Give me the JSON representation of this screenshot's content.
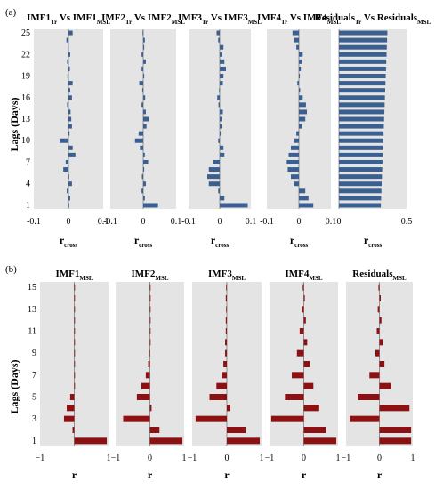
{
  "figure": {
    "panel_a_label": "(a)",
    "panel_b_label": "(b)"
  },
  "colors": {
    "bar_a": "#3B5F91",
    "bar_b": "#8B1113",
    "panel_bg": "#E4E4E4"
  },
  "chart_data": [
    {
      "type": "bar",
      "orientation": "horizontal",
      "panel": "(a)",
      "ylabel": "Lags (Days)",
      "y_ticks": [
        1,
        4,
        7,
        10,
        13,
        16,
        19,
        22,
        25
      ],
      "lags": [
        1,
        2,
        3,
        4,
        5,
        6,
        7,
        8,
        9,
        10,
        11,
        12,
        13,
        14,
        15,
        16,
        17,
        18,
        19,
        20,
        21,
        22,
        23,
        24,
        25
      ],
      "grid": "off",
      "subplots": [
        {
          "title_main": "IMF1",
          "title_sub": "Tr",
          "title_mid": " Vs IMF1",
          "title_sub2": "MSL",
          "xlabel_main": "r",
          "xlabel_sub": "cross",
          "xlim": [
            -0.1,
            0.1
          ],
          "x_ticks": [
            "-0.1",
            "0",
            "0.1"
          ],
          "x_tick_values": [
            -0.1,
            0,
            0.1
          ],
          "values": [
            0.0,
            0.005,
            -0.005,
            0.01,
            0.0,
            -0.015,
            -0.008,
            0.02,
            0.012,
            -0.025,
            0.003,
            0.01,
            0.008,
            0.006,
            -0.004,
            0.01,
            0.005,
            0.012,
            -0.003,
            0.004,
            -0.004,
            0.005,
            -0.002,
            -0.006,
            0.012
          ]
        },
        {
          "title_main": "IMF2",
          "title_sub": "Tr",
          "title_mid": " Vs IMF2",
          "title_sub2": "MSL",
          "xlabel_main": "r",
          "xlabel_sub": "cross",
          "xlim": [
            -0.1,
            0.1
          ],
          "x_ticks": [
            "-0.1",
            "0",
            "0.1"
          ],
          "x_tick_values": [
            -0.1,
            0,
            0.1
          ],
          "values": [
            0.045,
            0.005,
            -0.005,
            0.008,
            -0.004,
            0.003,
            0.015,
            0.005,
            -0.01,
            -0.025,
            -0.014,
            0.01,
            0.018,
            0.008,
            -0.005,
            0.006,
            -0.003,
            -0.012,
            0.003,
            -0.005,
            0.008,
            -0.005,
            0.003,
            0.005,
            -0.002
          ]
        },
        {
          "title_main": "IMF3",
          "title_sub": "Tr",
          "title_mid": " Vs IMF3",
          "title_sub2": "MSL",
          "xlabel_main": "r",
          "xlabel_sub": "cross",
          "xlim": [
            -0.1,
            0.1
          ],
          "x_ticks": [
            "-0.1",
            "0",
            "0.1"
          ],
          "x_tick_values": [
            -0.1,
            0,
            0.1
          ],
          "values": [
            0.09,
            0.015,
            -0.005,
            -0.035,
            -0.04,
            -0.035,
            -0.02,
            0.015,
            0.012,
            -0.005,
            0.003,
            0.006,
            0.008,
            0.01,
            -0.004,
            -0.008,
            -0.002,
            0.01,
            0.012,
            0.02,
            0.015,
            0.006,
            0.012,
            -0.005,
            -0.01
          ]
        },
        {
          "title_main": "IMF4",
          "title_sub": "Tr",
          "title_mid": " Vs IMF4",
          "title_sub2": "MSL",
          "xlabel_main": "r",
          "xlabel_sub": "cross",
          "xlim": [
            -0.1,
            0.1
          ],
          "x_ticks": [
            "-0.1",
            "0",
            "0.1"
          ],
          "x_tick_values": [
            -0.1,
            0,
            0.1
          ],
          "values": [
            0.045,
            0.03,
            0.02,
            -0.015,
            -0.025,
            -0.035,
            -0.038,
            -0.032,
            -0.025,
            -0.015,
            -0.008,
            0.01,
            0.02,
            0.025,
            0.022,
            0.012,
            0.004,
            -0.005,
            0.003,
            0.006,
            0.01,
            0.012,
            -0.008,
            -0.015,
            -0.02
          ]
        },
        {
          "title_main": "Residuals",
          "title_sub": "Tr",
          "title_mid": " Vs  Residuals",
          "title_sub2": "MSL",
          "xlabel_main": "r",
          "xlabel_sub": "cross",
          "xlim": [
            0,
            0.5
          ],
          "x_ticks": [
            "0",
            "0.5"
          ],
          "x_tick_values": [
            0,
            0.5
          ],
          "values": [
            0.31,
            0.312,
            0.314,
            0.316,
            0.318,
            0.32,
            0.322,
            0.324,
            0.326,
            0.328,
            0.33,
            0.332,
            0.334,
            0.336,
            0.338,
            0.34,
            0.342,
            0.344,
            0.346,
            0.348,
            0.35,
            0.352,
            0.354,
            0.356,
            0.358
          ]
        }
      ]
    },
    {
      "type": "bar",
      "orientation": "horizontal",
      "panel": "(b)",
      "ylabel": "Lags (Days)",
      "y_ticks": [
        1,
        3,
        5,
        7,
        9,
        11,
        13,
        15
      ],
      "lags": [
        1,
        2,
        3,
        4,
        5,
        6,
        7,
        8,
        9,
        10,
        11,
        12,
        13,
        14,
        15
      ],
      "grid": "off",
      "subplots": [
        {
          "title_main": "IMF1",
          "title_sub": "MSL",
          "xlabel_main": "r",
          "xlim": [
            -1,
            1
          ],
          "x_ticks": [
            "−1",
            "1"
          ],
          "x_tick_values": [
            -1,
            1
          ],
          "values": [
            0.95,
            -0.05,
            -0.3,
            -0.22,
            -0.12,
            0.0,
            0.0,
            0.02,
            0.01,
            0.0,
            0.0,
            0.0,
            0.0,
            0.0,
            0.0
          ]
        },
        {
          "title_main": "IMF2",
          "title_sub": "MSL",
          "xlabel_main": "r",
          "xlim": [
            -1,
            1
          ],
          "x_ticks": [
            "−1",
            "0",
            "1"
          ],
          "x_tick_values": [
            -1,
            0,
            1
          ],
          "values": [
            0.95,
            0.28,
            -0.78,
            0.05,
            -0.38,
            -0.25,
            -0.12,
            -0.05,
            -0.02,
            0.02,
            0.02,
            0.0,
            0.0,
            0.01,
            0.0
          ]
        },
        {
          "title_main": "IMF3",
          "title_sub": "MSL",
          "xlabel_main": "r",
          "xlim": [
            -1,
            1
          ],
          "x_ticks": [
            "−1",
            "0",
            "1"
          ],
          "x_tick_values": [
            -1,
            0,
            1
          ],
          "values": [
            0.95,
            0.55,
            -0.9,
            0.1,
            -0.5,
            -0.3,
            -0.15,
            -0.1,
            -0.05,
            -0.05,
            -0.03,
            -0.03,
            -0.02,
            -0.03,
            -0.02
          ]
        },
        {
          "title_main": "IMF4",
          "title_sub": "MSL",
          "xlabel_main": "r",
          "xlim": [
            -1,
            1
          ],
          "x_ticks": [
            "−1",
            "0",
            "1"
          ],
          "x_tick_values": [
            -1,
            0,
            1
          ],
          "values": [
            0.95,
            0.65,
            -0.95,
            0.45,
            -0.55,
            0.28,
            -0.35,
            0.18,
            -0.2,
            0.1,
            -0.12,
            0.06,
            -0.06,
            0.03,
            -0.03
          ]
        },
        {
          "title_main": "Residuals",
          "title_sub": "MSL",
          "xlabel_main": "r",
          "xlim": [
            -1,
            1
          ],
          "x_ticks": [
            "−1",
            "0",
            "1"
          ],
          "x_tick_values": [
            -1,
            0,
            1
          ],
          "values": [
            0.95,
            0.95,
            -0.88,
            0.9,
            -0.65,
            0.35,
            -0.3,
            0.15,
            -0.12,
            0.1,
            -0.08,
            0.06,
            -0.05,
            0.04,
            -0.03
          ]
        }
      ]
    }
  ]
}
